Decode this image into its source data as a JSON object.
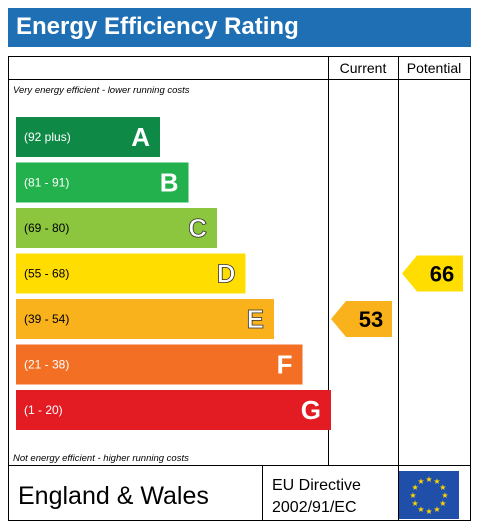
{
  "title": "Energy Efficiency Rating",
  "colors": {
    "title_bg": "#1f6fb5",
    "title_text": "#ffffff",
    "border": "#000000",
    "eu_blue": "#1f4fa8",
    "eu_star": "#ffd500"
  },
  "chart_data": {
    "type": "bar",
    "title": "Energy Efficiency Rating",
    "column_headers": [
      "Current",
      "Potential"
    ],
    "top_note": "Very energy efficient - lower running costs",
    "bottom_note": "Not energy efficient - higher running costs",
    "bands": [
      {
        "range": "(92 plus)",
        "letter": "A",
        "color": "#0f8a46"
      },
      {
        "range": "(81 - 91)",
        "letter": "B",
        "color": "#22b14c"
      },
      {
        "range": "(69 - 80)",
        "letter": "C",
        "color": "#8cc63f"
      },
      {
        "range": "(55 - 68)",
        "letter": "D",
        "color": "#ffdd00"
      },
      {
        "range": "(39 - 54)",
        "letter": "E",
        "color": "#f9b21b"
      },
      {
        "range": "(21 - 38)",
        "letter": "F",
        "color": "#f26f24"
      },
      {
        "range": "(1 - 20)",
        "letter": "G",
        "color": "#e31b23"
      }
    ],
    "current": {
      "value": 53,
      "band": "E",
      "color": "#f9b21b"
    },
    "potential": {
      "value": 66,
      "band": "D",
      "color": "#ffdd00"
    }
  },
  "footer": {
    "region": "England & Wales",
    "directive_line1": "EU Directive",
    "directive_line2": "2002/91/EC"
  }
}
